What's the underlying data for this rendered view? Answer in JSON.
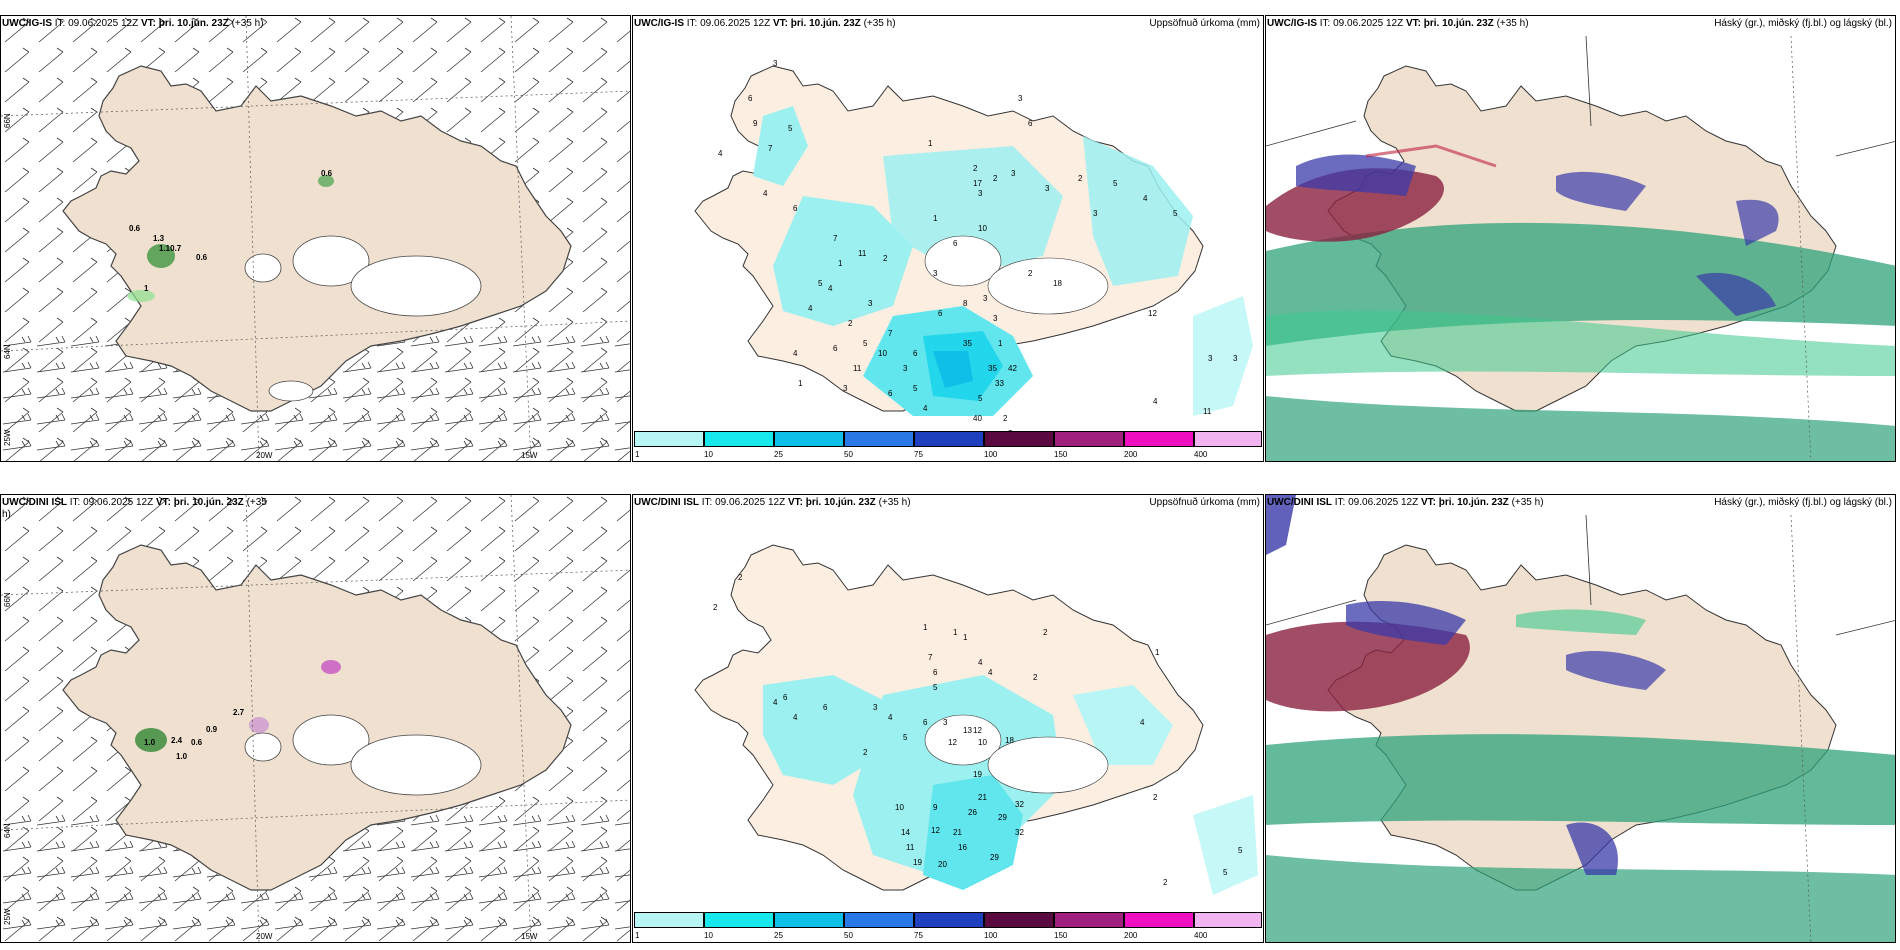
{
  "panels": [
    {
      "model": "UWC/IG-IS",
      "it_label": "IT:",
      "it": "09.06.2025 12Z",
      "vt_label": "VT:",
      "vt": "þri. 10.jún. 23Z",
      "lead": "(+35 h)"
    },
    {
      "model": "UWC/IG-IS",
      "it_label": "IT:",
      "it": "09.06.2025 12Z",
      "vt_label": "VT:",
      "vt": "þri. 10.jún. 23Z",
      "lead": "(+35 h)",
      "right": "Uppsöfnuð úrkoma (mm)"
    },
    {
      "model": "UWC/IG-IS",
      "it_label": "IT:",
      "it": "09.06.2025 12Z",
      "vt_label": "VT:",
      "vt": "þri. 10.jún. 23Z",
      "lead": "(+35 h)",
      "right": "Háský (gr.), miðský (fj.bl.) og lágský (bl.)"
    },
    {
      "model": "UWC/DINI ISL",
      "it_label": "IT:",
      "it": "09.06.2025 12Z",
      "vt_label": "VT:",
      "vt": "þri. 10.jún. 23Z",
      "lead": "(+35",
      "lead2": "h)"
    },
    {
      "model": "UWC/DINI ISL",
      "it_label": "IT:",
      "it": "09.06.2025 12Z",
      "vt_label": "VT:",
      "vt": "þri. 10.jún. 23Z",
      "lead": "(+35 h)",
      "right": "Uppsöfnuð úrkoma (mm)"
    },
    {
      "model": "UWC/DINI ISL",
      "it_label": "IT:",
      "it": "09.06.2025 12Z",
      "vt_label": "VT:",
      "vt": "þri. 10.jún. 23Z",
      "lead": "(+35 h)",
      "right": "Háský (gr.), miðský (fj.bl.) og lágský (bl.)"
    }
  ],
  "axes": {
    "lon": [
      "20W",
      "15W"
    ],
    "lat": [
      "66N",
      "64N",
      "25W"
    ]
  },
  "colorbar": {
    "ticks": [
      "1",
      "10",
      "25",
      "50",
      "75",
      "100",
      "150",
      "200",
      "400"
    ],
    "colors": [
      "#b8f6f6",
      "#16e8ec",
      "#0ec0e8",
      "#2a78e6",
      "#1e3fbe",
      "#5a0a3e",
      "#a0207e",
      "#ee10c0",
      "#f2b4f0"
    ]
  },
  "precip_top": [
    "3",
    "6",
    "4",
    "9",
    "7",
    "5",
    "6",
    "7",
    "4",
    "5",
    "1",
    "3",
    "2",
    "3",
    "17",
    "2",
    "3",
    "3",
    "2",
    "6",
    "3",
    "5",
    "4",
    "5",
    "1",
    "10",
    "6",
    "3",
    "2",
    "11",
    "1",
    "4",
    "3",
    "2",
    "5",
    "6",
    "10",
    "11",
    "4",
    "3",
    "6",
    "5",
    "4",
    "1",
    "3",
    "7",
    "6",
    "8",
    "4",
    "3",
    "3",
    "2",
    "18",
    "35",
    "1",
    "6",
    "35",
    "42",
    "33",
    "2",
    "5",
    "40",
    "2",
    "12",
    "3",
    "3",
    "11",
    "4"
  ],
  "precip_bottom": [
    "2",
    "2",
    "1",
    "1",
    "7",
    "6",
    "1",
    "4",
    "4",
    "5",
    "4",
    "4",
    "2",
    "2",
    "6",
    "6",
    "3",
    "4",
    "6",
    "5",
    "2",
    "3",
    "12",
    "13",
    "12",
    "18",
    "10",
    "19",
    "21",
    "26",
    "29",
    "32",
    "32",
    "10",
    "9",
    "14",
    "12",
    "21",
    "11",
    "16",
    "20",
    "29",
    "19",
    "2",
    "2",
    "5",
    "5",
    "1",
    "4"
  ],
  "wind_top_labels": [
    "0.6",
    "0.6",
    "1.3",
    "1.10.7",
    "0.6",
    "1"
  ],
  "wind_bottom_labels": [
    "2.7",
    "0.9",
    "1.0",
    "2.4",
    "0.6",
    "1.0"
  ]
}
